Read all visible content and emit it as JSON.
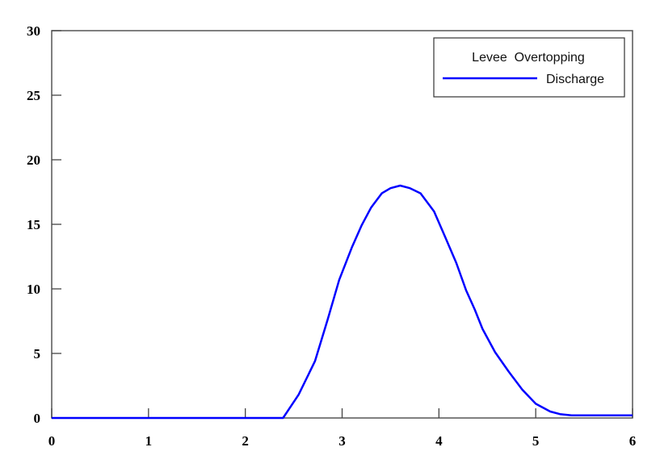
{
  "chart_data": {
    "type": "line",
    "title": "",
    "xlabel": "",
    "ylabel": "",
    "xlim": [
      0,
      6
    ],
    "ylim": [
      0,
      30
    ],
    "xticks": [
      "0",
      "1",
      "2",
      "3",
      "4",
      "5",
      "6"
    ],
    "yticks": [
      "0",
      "5",
      "10",
      "15",
      "20",
      "25",
      "30"
    ],
    "grid": false,
    "legend": {
      "title": "Levee  Overtopping",
      "placement": "top-right"
    },
    "series": [
      {
        "name": "Discharge",
        "color": "#0000ff",
        "x": [
          0,
          2.39,
          2.55,
          2.72,
          2.85,
          2.97,
          3.1,
          3.2,
          3.3,
          3.41,
          3.5,
          3.6,
          3.7,
          3.81,
          3.95,
          4.06,
          4.18,
          4.28,
          4.37,
          4.45,
          4.58,
          4.72,
          4.86,
          5.0,
          5.15,
          5.25,
          5.37,
          6
        ],
        "y": [
          0,
          0,
          1.8,
          4.4,
          7.6,
          10.7,
          13.2,
          14.9,
          16.3,
          17.4,
          17.8,
          18.0,
          17.8,
          17.4,
          16.0,
          14.1,
          12.0,
          9.9,
          8.4,
          6.9,
          5.1,
          3.6,
          2.2,
          1.1,
          0.5,
          0.3,
          0.2,
          0.2
        ]
      }
    ]
  }
}
